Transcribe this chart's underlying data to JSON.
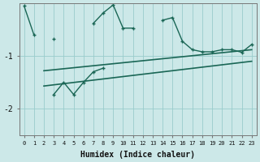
{
  "xlabel": "Humidex (Indice chaleur)",
  "x": [
    0,
    1,
    2,
    3,
    4,
    5,
    6,
    7,
    8,
    9,
    10,
    11,
    12,
    13,
    14,
    15,
    16,
    17,
    18,
    19,
    20,
    21,
    22,
    23
  ],
  "line1": [
    -0.05,
    -0.6,
    null,
    -0.68,
    null,
    null,
    null,
    -0.38,
    -0.18,
    -0.03,
    -0.47,
    -0.47,
    null,
    null,
    -0.32,
    -0.27,
    -0.72,
    -0.88,
    -0.92,
    -0.92,
    -0.88,
    -0.88,
    -0.93,
    -0.78
  ],
  "line2": [
    null,
    null,
    null,
    -1.73,
    -1.5,
    -1.73,
    -1.5,
    -1.3,
    -1.23,
    null,
    null,
    null,
    null,
    null,
    null,
    null,
    null,
    null,
    null,
    null,
    null,
    null,
    null,
    null
  ],
  "line3_x": [
    2,
    23
  ],
  "line3_y": [
    -1.28,
    -0.88
  ],
  "line4_x": [
    2,
    23
  ],
  "line4_y": [
    -1.57,
    -1.1
  ],
  "bg_color": "#cce8e8",
  "grid_color": "#99cccc",
  "line_color": "#1a6655",
  "ylim_min": -2.5,
  "ylim_max": -0.0,
  "yticks": [
    -2,
    -1
  ],
  "xticks": [
    0,
    1,
    2,
    3,
    4,
    5,
    6,
    7,
    8,
    9,
    10,
    11,
    12,
    13,
    14,
    15,
    16,
    17,
    18,
    19,
    20,
    21,
    22,
    23
  ]
}
